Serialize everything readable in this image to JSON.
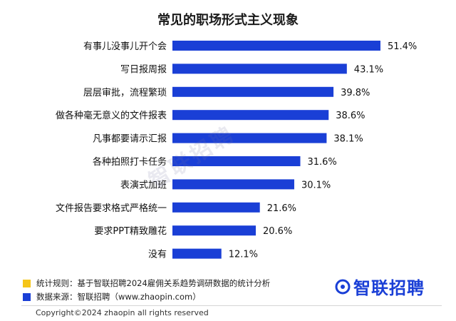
{
  "chart_data": {
    "type": "bar",
    "orientation": "horizontal",
    "title": "常见的职场形式主义现象",
    "categories": [
      "有事儿没事儿开个会",
      "写日报周报",
      "层层审批，流程繁琐",
      "做各种毫无意义的文件报表",
      "凡事都要请示汇报",
      "各种拍照打卡任务",
      "表演式加班",
      "文件报告要求格式严格统一",
      "要求PPT精致雕花",
      "没有"
    ],
    "values": [
      51.4,
      43.1,
      39.8,
      38.6,
      38.1,
      31.6,
      30.1,
      21.6,
      20.6,
      12.1
    ],
    "value_labels": [
      "51.4%",
      "43.1%",
      "39.8%",
      "38.6%",
      "38.1%",
      "31.6%",
      "30.1%",
      "21.6%",
      "20.6%",
      "12.1%"
    ],
    "xlim": [
      0,
      60
    ],
    "grid": false,
    "bar_color": "#1a3fd6",
    "xlabel": "",
    "ylabel": ""
  },
  "watermark": "智联招聘",
  "notes": {
    "rule": "统计规则：基于智联招聘2024雇佣关系趋势调研数据的统计分析",
    "source": "数据来源：智联招聘（www.zhaopin.com）",
    "rule_color": "#f5c518",
    "source_color": "#1a3fd6"
  },
  "brand": {
    "logo_text": "智联招聘",
    "icon": "zhaopin-logo-icon",
    "color": "#1a3fd6"
  },
  "copyright": "Copyright©2024 zhaopin all rights reserved"
}
